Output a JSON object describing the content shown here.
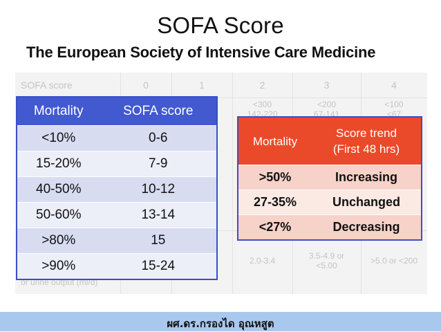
{
  "title": "SOFA Score",
  "subtitle": "The European Society of Intensive Care Medicine",
  "background_table": {
    "header": [
      "SOFA score",
      "0",
      "1",
      "2",
      "3",
      "4"
    ],
    "pao2_col2": "<300\n142-220",
    "pao2_col3": "<200\n67-141",
    "pao2_col4": "<100\n<67",
    "partial_e": "e",
    "renal_label": "or urine output (ml/d)",
    "renal_col2": "2.0-3.4",
    "renal_col3": "3.5-4.9 or\n<5.00",
    "renal_col4": ">5.0 or <200"
  },
  "mortality_table": {
    "headers": [
      "Mortality",
      "SOFA score"
    ],
    "rows": [
      [
        "<10%",
        "0-6"
      ],
      [
        "15-20%",
        "7-9"
      ],
      [
        "40-50%",
        "10-12"
      ],
      [
        "50-60%",
        "13-14"
      ],
      [
        ">80%",
        "15"
      ],
      [
        ">90%",
        "15-24"
      ]
    ]
  },
  "trend_table": {
    "headers": [
      "Mortality",
      "Score trend\n(First 48 hrs)"
    ],
    "rows": [
      [
        ">50%",
        "Increasing"
      ],
      [
        "27-35%",
        "Unchanged"
      ],
      [
        "<27%",
        "Decreasing"
      ]
    ]
  },
  "footer": "ผศ.ดร.กรองได อุณหสูต",
  "colors": {
    "blue_header": "#4259cf",
    "red_header": "#ea4a2a",
    "footer_bar": "#a9c8ee"
  }
}
